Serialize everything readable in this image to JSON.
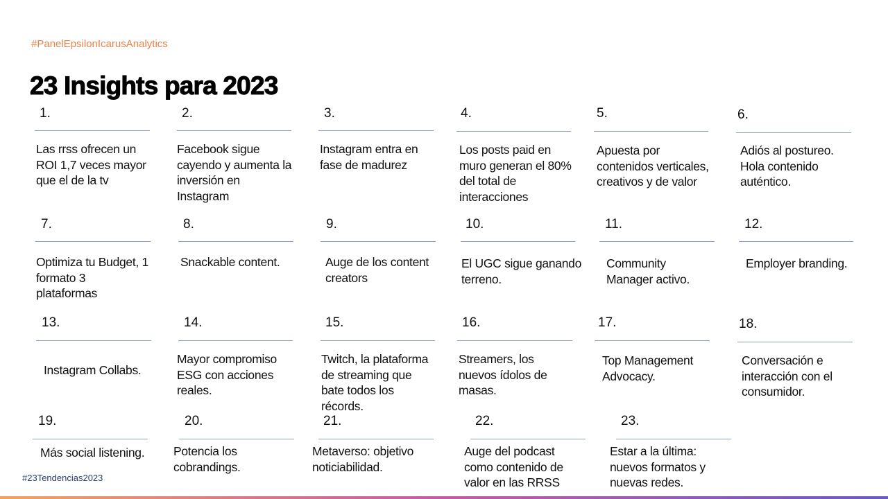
{
  "header": {
    "hashtag": "#PanelEpsilonIcarusAnalytics",
    "title": "23 Insights para 2023"
  },
  "items": [
    {
      "number": "1.",
      "lines": [
        "Las rrss ofrecen un",
        "ROI 1,7 veces mayor",
        "que el de la tv"
      ]
    },
    {
      "number": "2.",
      "lines": [
        "Facebook sigue",
        "cayendo y aumenta la",
        "inversión en",
        "Instagram"
      ]
    },
    {
      "number": "3.",
      "lines": [
        "Instagram entra en",
        "fase de madurez"
      ]
    },
    {
      "number": "4.",
      "lines": [
        "Los posts paid en",
        "muro generan el 80%",
        "del total de",
        "interacciones"
      ]
    },
    {
      "number": "5.",
      "lines": [
        "Apuesta por",
        "contenidos verticales,",
        "creativos y de valor"
      ]
    },
    {
      "number": "6.",
      "lines": [
        "Adiós al postureo.",
        "Hola contenido",
        "auténtico."
      ]
    },
    {
      "number": "7.",
      "lines": [
        "Optimiza tu Budget, 1",
        "formato 3",
        "plataformas"
      ]
    },
    {
      "number": "8.",
      "lines": [
        "Snackable content."
      ]
    },
    {
      "number": "9.",
      "lines": [
        "Auge de los content",
        "creators"
      ]
    },
    {
      "number": "10.",
      "lines": [
        "El UGC sigue ganando",
        "terreno."
      ]
    },
    {
      "number": "11.",
      "lines": [
        "Community",
        "Manager activo."
      ]
    },
    {
      "number": "12.",
      "lines": [
        "Employer branding."
      ]
    },
    {
      "number": "13.",
      "lines": [
        "Instagram Collabs."
      ]
    },
    {
      "number": "14.",
      "lines": [
        "Mayor compromiso",
        "ESG con acciones",
        "reales."
      ]
    },
    {
      "number": "15.",
      "lines": [
        "Twitch, la plataforma",
        "de streaming que",
        "bate todos los",
        "récords."
      ]
    },
    {
      "number": "16.",
      "lines": [
        "Streamers, los",
        "nuevos ídolos de",
        "masas."
      ]
    },
    {
      "number": "17.",
      "lines": [
        "Top Management",
        "Advocacy."
      ]
    },
    {
      "number": "18.",
      "lines": [
        "Conversación e",
        "interacción con el",
        "consumidor."
      ]
    },
    {
      "number": "19.",
      "lines": [
        "Más social listening."
      ]
    },
    {
      "number": "20.",
      "lines": [
        "Potencia los",
        "cobrandings."
      ]
    },
    {
      "number": "21.",
      "lines": [
        "Metaverso: objetivo",
        "noticiabilidad."
      ]
    },
    {
      "number": "22.",
      "lines": [
        "Auge del podcast",
        "como contenido de",
        "valor en las RRSS"
      ]
    },
    {
      "number": "23.",
      "lines": [
        "Estar a la última:",
        "nuevos formatos y",
        "nuevas redes."
      ]
    }
  ],
  "footer": {
    "hashtag": "#23Tendencias2023"
  }
}
